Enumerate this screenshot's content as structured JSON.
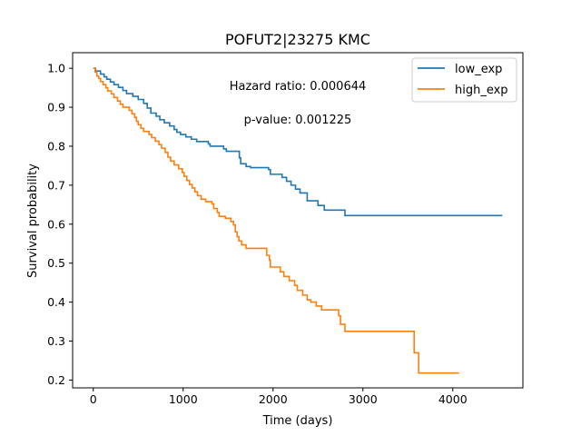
{
  "chart_data": {
    "type": "line",
    "title": "POFUT2|23275 KMC",
    "xlabel": "Time (days)",
    "ylabel": "Survival probability",
    "xlim": [
      -230,
      4780
    ],
    "ylim": [
      0.18,
      1.04
    ],
    "xticks": [
      0,
      1000,
      2000,
      3000,
      4000
    ],
    "yticks": [
      0.2,
      0.3,
      0.4,
      0.5,
      0.6,
      0.7,
      0.8,
      0.9,
      1.0
    ],
    "xtick_labels": [
      "0",
      "1000",
      "2000",
      "3000",
      "4000"
    ],
    "ytick_labels": [
      "0.2",
      "0.3",
      "0.4",
      "0.5",
      "0.6",
      "0.7",
      "0.8",
      "0.9",
      "1.0"
    ],
    "grid": false,
    "legend_position": "top-right",
    "annotations": [
      "Hazard ratio: 0.000644",
      "p-value: 0.001225"
    ],
    "series": [
      {
        "name": "low_exp",
        "color": "#1f77b4",
        "step": true,
        "points": [
          [
            0,
            1.0
          ],
          [
            25,
            0.993
          ],
          [
            40,
            0.993
          ],
          [
            80,
            0.985
          ],
          [
            120,
            0.978
          ],
          [
            150,
            0.972
          ],
          [
            190,
            0.965
          ],
          [
            230,
            0.958
          ],
          [
            280,
            0.951
          ],
          [
            330,
            0.943
          ],
          [
            370,
            0.935
          ],
          [
            440,
            0.928
          ],
          [
            500,
            0.92
          ],
          [
            560,
            0.91
          ],
          [
            600,
            0.898
          ],
          [
            640,
            0.885
          ],
          [
            700,
            0.877
          ],
          [
            740,
            0.868
          ],
          [
            790,
            0.86
          ],
          [
            850,
            0.852
          ],
          [
            900,
            0.843
          ],
          [
            930,
            0.836
          ],
          [
            970,
            0.83
          ],
          [
            1030,
            0.824
          ],
          [
            1090,
            0.818
          ],
          [
            1150,
            0.812
          ],
          [
            1280,
            0.806
          ],
          [
            1300,
            0.8
          ],
          [
            1450,
            0.793
          ],
          [
            1480,
            0.787
          ],
          [
            1600,
            0.787
          ],
          [
            1625,
            0.77
          ],
          [
            1640,
            0.755
          ],
          [
            1700,
            0.748
          ],
          [
            1750,
            0.745
          ],
          [
            1950,
            0.74
          ],
          [
            1970,
            0.728
          ],
          [
            2100,
            0.72
          ],
          [
            2150,
            0.71
          ],
          [
            2200,
            0.7
          ],
          [
            2220,
            0.7
          ],
          [
            2250,
            0.69
          ],
          [
            2300,
            0.68
          ],
          [
            2380,
            0.66
          ],
          [
            2500,
            0.648
          ],
          [
            2570,
            0.636
          ],
          [
            2800,
            0.622
          ],
          [
            4550,
            0.622
          ]
        ]
      },
      {
        "name": "high_exp",
        "color": "#ff7f0e",
        "step": true,
        "points": [
          [
            0,
            1.0
          ],
          [
            20,
            0.99
          ],
          [
            40,
            0.98
          ],
          [
            60,
            0.974
          ],
          [
            80,
            0.966
          ],
          [
            110,
            0.958
          ],
          [
            140,
            0.95
          ],
          [
            160,
            0.942
          ],
          [
            200,
            0.934
          ],
          [
            230,
            0.925
          ],
          [
            270,
            0.916
          ],
          [
            300,
            0.908
          ],
          [
            330,
            0.9
          ],
          [
            400,
            0.892
          ],
          [
            430,
            0.883
          ],
          [
            460,
            0.874
          ],
          [
            480,
            0.864
          ],
          [
            500,
            0.855
          ],
          [
            530,
            0.846
          ],
          [
            560,
            0.838
          ],
          [
            620,
            0.83
          ],
          [
            650,
            0.822
          ],
          [
            690,
            0.813
          ],
          [
            730,
            0.804
          ],
          [
            760,
            0.795
          ],
          [
            800,
            0.784
          ],
          [
            830,
            0.772
          ],
          [
            860,
            0.762
          ],
          [
            900,
            0.752
          ],
          [
            950,
            0.742
          ],
          [
            990,
            0.733
          ],
          [
            1010,
            0.723
          ],
          [
            1040,
            0.712
          ],
          [
            1070,
            0.702
          ],
          [
            1100,
            0.693
          ],
          [
            1130,
            0.683
          ],
          [
            1160,
            0.673
          ],
          [
            1200,
            0.664
          ],
          [
            1250,
            0.658
          ],
          [
            1320,
            0.652
          ],
          [
            1340,
            0.64
          ],
          [
            1380,
            0.63
          ],
          [
            1400,
            0.62
          ],
          [
            1470,
            0.615
          ],
          [
            1530,
            0.607
          ],
          [
            1560,
            0.598
          ],
          [
            1580,
            0.58
          ],
          [
            1600,
            0.568
          ],
          [
            1620,
            0.557
          ],
          [
            1650,
            0.547
          ],
          [
            1700,
            0.538
          ],
          [
            1930,
            0.52
          ],
          [
            1960,
            0.508
          ],
          [
            1970,
            0.49
          ],
          [
            2080,
            0.478
          ],
          [
            2120,
            0.466
          ],
          [
            2180,
            0.455
          ],
          [
            2240,
            0.443
          ],
          [
            2270,
            0.43
          ],
          [
            2330,
            0.418
          ],
          [
            2380,
            0.406
          ],
          [
            2420,
            0.4
          ],
          [
            2480,
            0.39
          ],
          [
            2540,
            0.38
          ],
          [
            2730,
            0.365
          ],
          [
            2750,
            0.343
          ],
          [
            2800,
            0.325
          ],
          [
            3560,
            0.325
          ],
          [
            3570,
            0.27
          ],
          [
            3600,
            0.27
          ],
          [
            3620,
            0.218
          ],
          [
            4070,
            0.218
          ]
        ]
      }
    ]
  }
}
